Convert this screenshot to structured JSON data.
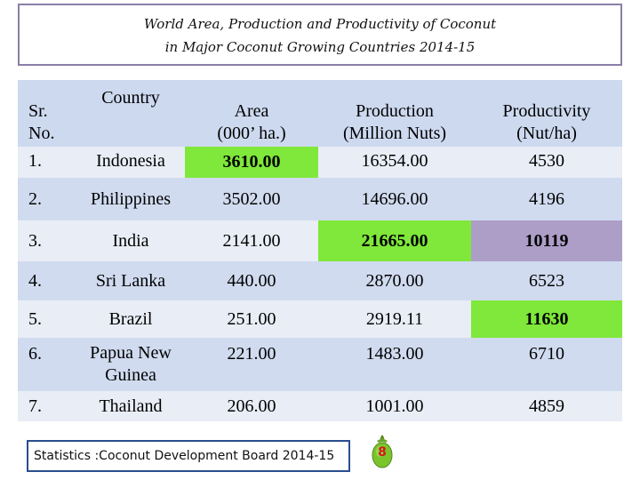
{
  "title": {
    "line1": "World Area, Production and Productivity of Coconut",
    "line2": "in Major Coconut Growing Countries 2014-15"
  },
  "table": {
    "headers": {
      "sr_line1": "Sr.",
      "sr_line2": "No.",
      "country": "Country",
      "area_line1": "Area",
      "area_line2": "(000’ ha.)",
      "production_line1": "Production",
      "production_line2": "(Million Nuts)",
      "productivity_line1": "Productivity",
      "productivity_line2": "(Nut/ha)"
    },
    "rows": [
      {
        "sr": "1.",
        "country": "Indonesia",
        "area": "3610.00",
        "production": "16354.00",
        "productivity": "4530"
      },
      {
        "sr": "2.",
        "country": "Philippines",
        "area": "3502.00",
        "production": "14696.00",
        "productivity": "4196"
      },
      {
        "sr": "3.",
        "country": "India",
        "area": "2141.00",
        "production": "21665.00",
        "productivity": "10119"
      },
      {
        "sr": "4.",
        "country": "Sri Lanka",
        "area": "440.00",
        "production": "2870.00",
        "productivity": "6523"
      },
      {
        "sr": "5.",
        "country": "Brazil",
        "area": "251.00",
        "production": "2919.11",
        "productivity": "11630"
      },
      {
        "sr": "6.",
        "country_line1": "Papua New",
        "country_line2": "Guinea",
        "area": "221.00",
        "production": "1483.00",
        "productivity": "6710"
      },
      {
        "sr": "7.",
        "country": "Thailand",
        "area": "206.00",
        "production": "1001.00",
        "productivity": "4859"
      }
    ],
    "highlight_colors": {
      "max_green": "#7fe83a",
      "purple": "#ad9ec8"
    }
  },
  "source": "Statistics :Coconut Development Board 2014-15",
  "page_number": "8",
  "icons": {
    "badge": "coconut-icon"
  }
}
